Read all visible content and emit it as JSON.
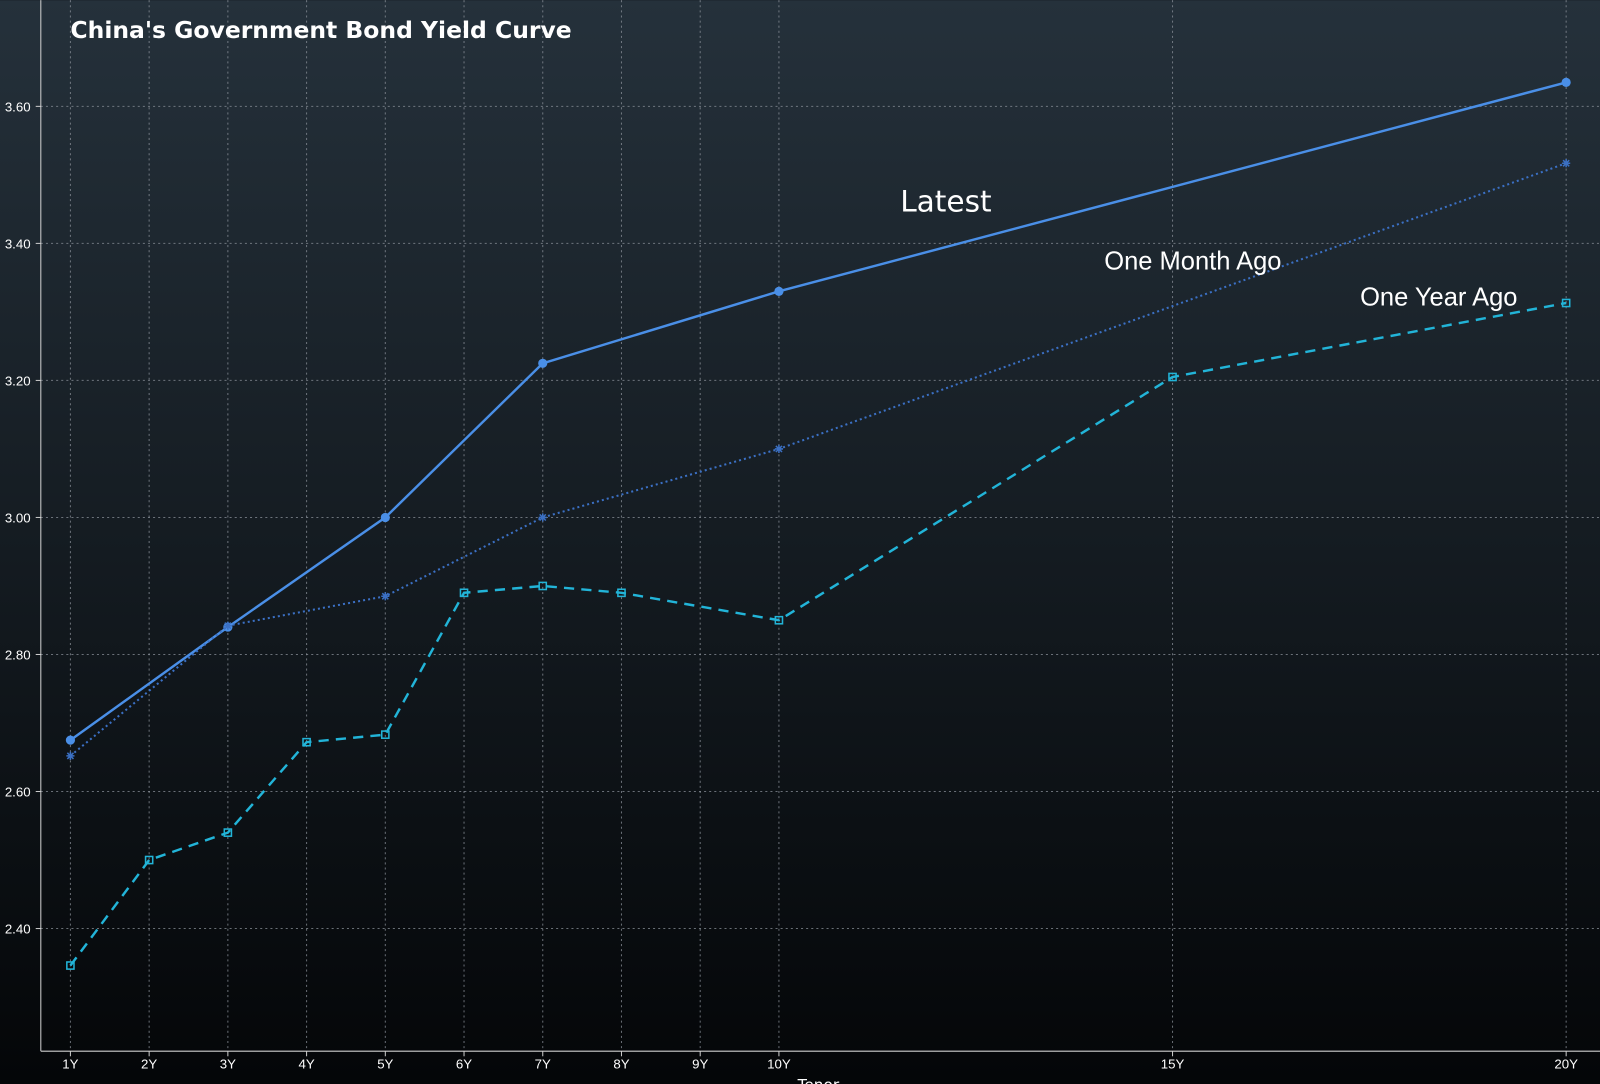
{
  "chart_data": {
    "type": "line",
    "title": "China's Government Bond Yield Curve",
    "x_label": "Tenor",
    "xlim": [
      0.624,
      20.43
    ],
    "ylim": [
      2.221,
      3.755
    ],
    "xticks": [
      {
        "value": 1,
        "label": "1Y"
      },
      {
        "value": 2,
        "label": "2Y"
      },
      {
        "value": 3,
        "label": "3Y"
      },
      {
        "value": 4,
        "label": "4Y"
      },
      {
        "value": 5,
        "label": "5Y"
      },
      {
        "value": 6,
        "label": "6Y"
      },
      {
        "value": 7,
        "label": "7Y"
      },
      {
        "value": 8,
        "label": "8Y"
      },
      {
        "value": 9,
        "label": "9Y"
      },
      {
        "value": 10,
        "label": "10Y"
      },
      {
        "value": 15,
        "label": "15Y"
      },
      {
        "value": 20,
        "label": "20Y"
      }
    ],
    "yticks": [
      {
        "value": 2.4,
        "label": "2.40"
      },
      {
        "value": 2.6,
        "label": "2.60"
      },
      {
        "value": 2.8,
        "label": "2.80"
      },
      {
        "value": 3.0,
        "label": "3.00"
      },
      {
        "value": 3.2,
        "label": "3.20"
      },
      {
        "value": 3.4,
        "label": "3.40"
      },
      {
        "value": 3.6,
        "label": "3.60"
      }
    ],
    "grid": true,
    "series": [
      {
        "name": "Latest",
        "color": "#4a8fe7",
        "style": "solid",
        "marker": "circle",
        "x": [
          1,
          3,
          5,
          7,
          10,
          20
        ],
        "values": [
          2.675,
          2.84,
          3.0,
          3.225,
          3.33,
          3.635
        ]
      },
      {
        "name": "One Month Ago",
        "color": "#3b70c4",
        "style": "dotted",
        "marker": "star",
        "x": [
          1,
          3,
          5,
          7,
          10,
          20
        ],
        "values": [
          2.652,
          2.842,
          2.885,
          3.0,
          3.1,
          3.517
        ]
      },
      {
        "name": "One Year Ago",
        "color": "#22b4d8",
        "style": "dashed",
        "marker": "square",
        "x": [
          1,
          2,
          3,
          4,
          5,
          6,
          7,
          8,
          10,
          15,
          20
        ],
        "values": [
          2.346,
          2.5,
          2.54,
          2.672,
          2.683,
          2.89,
          2.9,
          2.89,
          2.85,
          3.205,
          3.313
        ]
      }
    ]
  }
}
